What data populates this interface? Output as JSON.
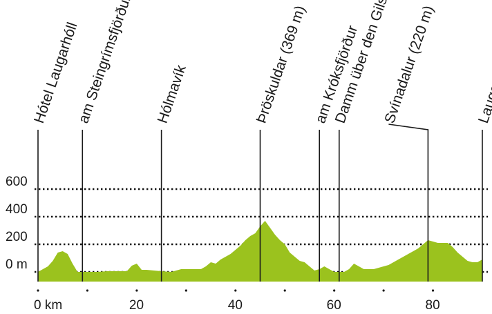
{
  "chart_data": {
    "type": "area",
    "title": "",
    "xlabel": "",
    "ylabel": "",
    "x_unit": "km",
    "y_unit": "m",
    "xlim": [
      0,
      90
    ],
    "ylim": [
      0,
      600
    ],
    "grid": "dotted horizontal lines at 0, 200, 400, 600",
    "fill_color": "#9bc21e",
    "base_band_color": "#9bc21e",
    "x_ticks": [
      {
        "value": 0,
        "label": "0 km"
      },
      {
        "value": 20,
        "label": "20"
      },
      {
        "value": 40,
        "label": "40"
      },
      {
        "value": 60,
        "label": "60"
      },
      {
        "value": 80,
        "label": "80"
      }
    ],
    "x_minor_ticks": [
      10,
      30,
      50,
      70
    ],
    "y_ticks": [
      {
        "value": 0,
        "label": "0 m"
      },
      {
        "value": 200,
        "label": "200"
      },
      {
        "value": 400,
        "label": "400"
      },
      {
        "value": 600,
        "label": "600"
      }
    ],
    "series": [
      {
        "x": [
          0,
          1,
          2,
          3,
          4,
          5,
          6,
          7,
          8,
          9,
          10,
          12,
          14,
          18,
          19,
          20,
          21,
          22,
          25,
          27,
          29,
          31,
          33,
          34,
          35,
          36,
          37,
          38,
          39,
          40,
          41,
          42,
          43,
          44,
          45,
          46,
          47,
          48,
          49,
          50,
          51,
          52,
          53,
          54,
          55,
          56,
          57,
          58,
          59,
          60,
          61,
          62,
          63,
          64,
          65,
          66,
          67,
          68,
          69,
          70,
          71,
          72,
          73,
          74,
          75,
          76,
          77,
          78,
          79,
          80,
          81,
          82,
          83,
          84,
          85,
          86,
          87,
          88,
          89,
          90
        ],
        "y": [
          0,
          20,
          40,
          80,
          140,
          150,
          130,
          60,
          0,
          0,
          0,
          0,
          5,
          5,
          45,
          60,
          15,
          15,
          5,
          0,
          20,
          20,
          20,
          40,
          70,
          60,
          90,
          110,
          130,
          160,
          190,
          230,
          260,
          280,
          330,
          370,
          320,
          270,
          230,
          200,
          140,
          110,
          80,
          70,
          40,
          10,
          20,
          40,
          20,
          0,
          0,
          0,
          20,
          60,
          40,
          20,
          20,
          20,
          30,
          40,
          50,
          70,
          90,
          110,
          130,
          150,
          170,
          200,
          230,
          220,
          210,
          210,
          210,
          180,
          140,
          110,
          80,
          70,
          70,
          90
        ]
      }
    ],
    "markers": [
      {
        "km": 0,
        "label": "Hótel Laugarhóll"
      },
      {
        "km": 9,
        "label": "am Steingrímsfjörður (Fjord)"
      },
      {
        "km": 25,
        "label": "Hólmavík"
      },
      {
        "km": 45,
        "label": "Þröskuldar (369 m)"
      },
      {
        "km": 57,
        "label": "am Króksfjörður"
      },
      {
        "km": 61,
        "label": "Damm über den Gilsfjörður"
      },
      {
        "km": 79,
        "label": "Svínadalur (220 m)"
      },
      {
        "km": 90,
        "label": "Laugar (Dalahótel)"
      }
    ]
  }
}
